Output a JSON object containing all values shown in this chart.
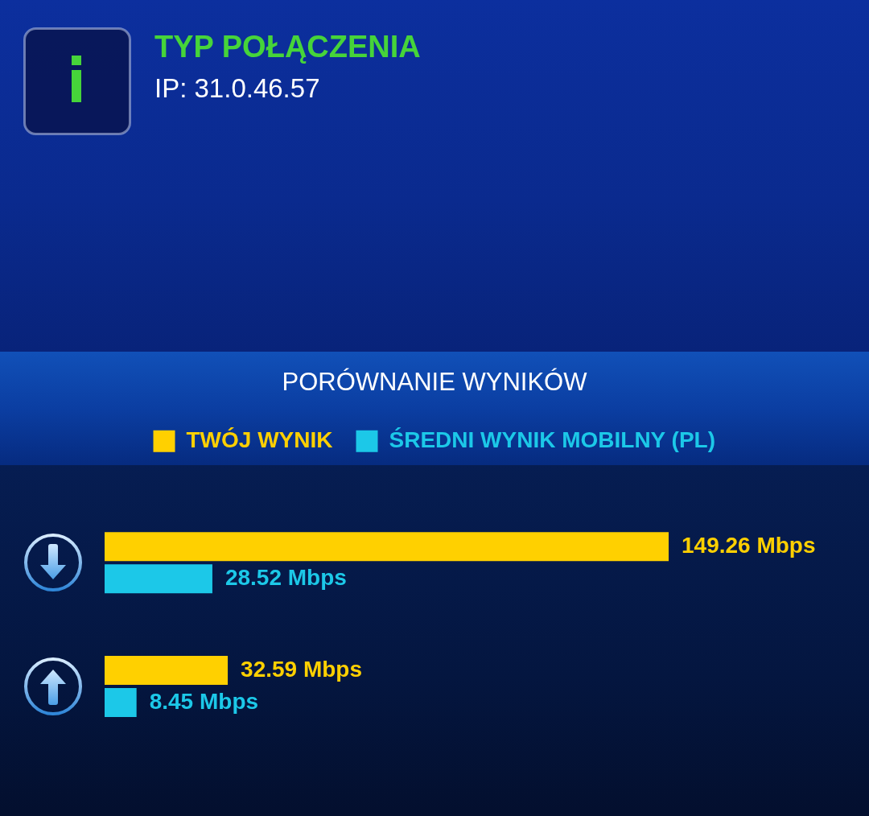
{
  "chart_data": [
    {
      "type": "other",
      "title": "TYP POŁĄCZENIA",
      "annotations": [
        "IP: 31.0.46.57"
      ]
    },
    {
      "type": "bar",
      "title": "PORÓWNANIE WYNIKÓW",
      "orientation": "horizontal",
      "categories": [
        null,
        null
      ],
      "series": [
        {
          "name": "TWÓJ WYNIK",
          "color": "#ffd000",
          "values": [
            149.26,
            32.59
          ],
          "value_labels": [
            "149.26 Mbps",
            "32.59 Mbps"
          ]
        },
        {
          "name": "ŚREDNI WYNIK MOBILNY (PL)",
          "color": "#1cc8e8",
          "values": [
            28.52,
            8.45
          ],
          "value_labels": [
            "28.52 Mbps",
            "8.45 Mbps"
          ]
        }
      ],
      "tick_labels": false,
      "grid": false,
      "legend": "top"
    }
  ]
}
